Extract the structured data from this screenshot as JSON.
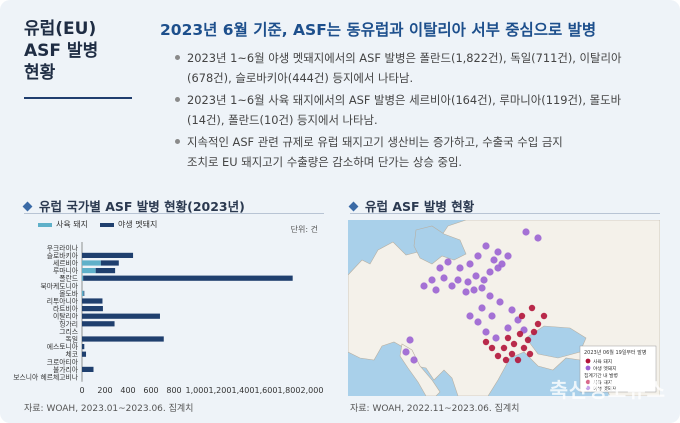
{
  "side_title": [
    "유럽(EU)",
    "ASF 발병",
    "현황"
  ],
  "headline": "2023년 6월 기준, ASF는 동유럽과 이탈리아 서부 중심으로 발병",
  "bullets": [
    [
      "2023년 1~6월 야생 멧돼지에서의 ASF 발병은 폴란드(1,822건), 독일(711건), 이탈리아",
      "(678건), 슬로바키아(444건) 등지에서 나타남."
    ],
    [
      "2023년 1~6월 사육 돼지에서의 ASF 발병은 세르비아(164건), 루마니아(119건), 몰도바",
      "(14건), 폴란드(10건) 등지에서 나타남."
    ],
    [
      "지속적인 ASF 관련 규제로 유럽 돼지고기 생산비는 증가하고, 수출국 수입 금지",
      "조치로 EU 돼지고기 수출량은 감소하며 단가는 상승 중임."
    ]
  ],
  "chart_section_title": "유럽 국가별 ASF 발병 현황(2023년)",
  "map_section_title": "유럽 ASF 발병 현황",
  "chart_data": {
    "type": "bar",
    "orientation": "horizontal",
    "stacked": true,
    "unit_label": "단위: 건",
    "categories": [
      "우크라이나",
      "슬로바키아",
      "세르비아",
      "루마니아",
      "폴란드",
      "북마케도니아",
      "몰도바",
      "리투아니아",
      "라트비아",
      "이탈리아",
      "헝가리",
      "그리스",
      "독일",
      "에스토니아",
      "체코",
      "크로아티아",
      "불가리아",
      "보스니아 헤르체고비나"
    ],
    "series": [
      {
        "name": "사육 돼지",
        "color": "#5fb0c9",
        "values": [
          0,
          0,
          164,
          119,
          10,
          0,
          14,
          0,
          0,
          0,
          0,
          0,
          0,
          0,
          0,
          0,
          0,
          0
        ]
      },
      {
        "name": "야생 멧돼지",
        "color": "#1f3f6e",
        "values": [
          0,
          444,
          156,
          169,
          1822,
          0,
          6,
          178,
          182,
          678,
          283,
          0,
          711,
          20,
          35,
          0,
          100,
          0
        ]
      }
    ],
    "xticks": [
      "0",
      "200",
      "400",
      "600",
      "800",
      "1,000",
      "1,200",
      "1,400",
      "1,600",
      "1,800",
      "2,000"
    ],
    "xlim": [
      0,
      2000
    ],
    "legend_position": "top-left",
    "source": "자료: WOAH, 2023.01~2023.06. 집계치"
  },
  "map": {
    "source": "자료: WOAH, 2022.11~2023.06. 집계치",
    "legend_title": "2023년 06월 19일부터 발병",
    "legend_items": [
      "사육 돼지",
      "야생 멧돼지",
      "집계기간 내 발병",
      "사육 돼지",
      "야생 멧돼지"
    ],
    "colors": {
      "sea": "#a9d0ea",
      "land": "#f4f1ea",
      "domestic": "#b3143a",
      "wild": "#9b63d3"
    }
  },
  "watermark": "축산정보뉴스"
}
